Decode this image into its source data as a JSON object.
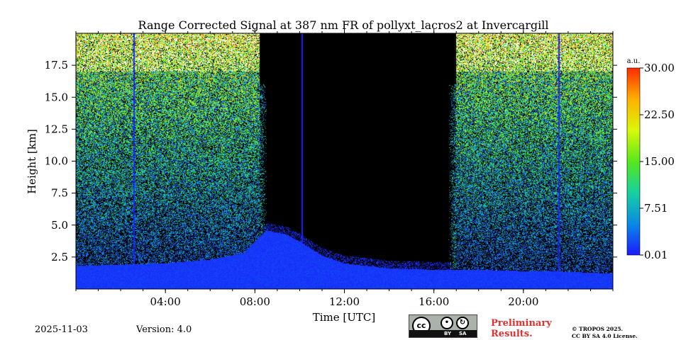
{
  "chart_data": {
    "type": "heatmap",
    "title": "Range Corrected Signal at 387 nm FR of pollyxt_lacros2 at Invercargill",
    "xlabel": "Time [UTC]",
    "ylabel": "Height [km]",
    "xlim": [
      0,
      24
    ],
    "ylim": [
      0,
      20
    ],
    "x_ticks": [
      {
        "value": 4,
        "label": "04:00"
      },
      {
        "value": 8,
        "label": "08:00"
      },
      {
        "value": 12,
        "label": "12:00"
      },
      {
        "value": 16,
        "label": "16:00"
      },
      {
        "value": 20,
        "label": "20:00"
      }
    ],
    "y_ticks": [
      {
        "value": 2.5,
        "label": "2.5"
      },
      {
        "value": 5.0,
        "label": "5.0"
      },
      {
        "value": 7.5,
        "label": "7.5"
      },
      {
        "value": 10.0,
        "label": "10.0"
      },
      {
        "value": 12.5,
        "label": "12.5"
      },
      {
        "value": 15.0,
        "label": "15.0"
      },
      {
        "value": 17.5,
        "label": "17.5"
      }
    ],
    "colorbar": {
      "label": "a.u.",
      "min": 0.01,
      "max": 30.0,
      "ticks": [
        {
          "value": 0.01,
          "label": "0.01"
        },
        {
          "value": 7.51,
          "label": "7.51"
        },
        {
          "value": 15.0,
          "label": "15.00"
        },
        {
          "value": 22.5,
          "label": "22.50"
        },
        {
          "value": 30.0,
          "label": "30.00"
        }
      ],
      "colormap": [
        "#1a1aff",
        "#0a8ae6",
        "#17d0a0",
        "#57e81b",
        "#d9f80a",
        "#ffb000",
        "#ff2a00"
      ]
    },
    "description_data": {
      "daylight_gap_hours": [
        8.2,
        17.0
      ],
      "boundary_layer_top_km": [
        {
          "t": 0,
          "h": 1.8
        },
        {
          "t": 2,
          "h": 1.9
        },
        {
          "t": 4,
          "h": 2.0
        },
        {
          "t": 6,
          "h": 2.3
        },
        {
          "t": 7.5,
          "h": 2.8
        },
        {
          "t": 8.5,
          "h": 4.6
        },
        {
          "t": 9.5,
          "h": 4.2
        },
        {
          "t": 10.2,
          "h": 3.5
        },
        {
          "t": 11,
          "h": 2.6
        },
        {
          "t": 12,
          "h": 2.0
        },
        {
          "t": 13,
          "h": 1.8
        },
        {
          "t": 14,
          "h": 1.6
        },
        {
          "t": 15,
          "h": 1.55
        },
        {
          "t": 16,
          "h": 1.5
        },
        {
          "t": 17,
          "h": 1.5
        },
        {
          "t": 18,
          "h": 1.5
        },
        {
          "t": 19,
          "h": 1.45
        },
        {
          "t": 20,
          "h": 1.4
        },
        {
          "t": 22,
          "h": 1.35
        },
        {
          "t": 24,
          "h": 1.2
        }
      ],
      "data_gaps_hours": [
        2.6,
        10.1,
        21.6
      ]
    }
  },
  "footer": {
    "date": "2025-11-03",
    "version": "Version: 4.0",
    "preliminary_line1": "Preliminary",
    "preliminary_line2": "Results.",
    "copyright_line1": "© TROPOS 2025.",
    "copyright_line2": "CC BY SA 4.0 License.",
    "cc_by": "BY",
    "cc_sa": "SA",
    "cc_mark": "cc"
  }
}
